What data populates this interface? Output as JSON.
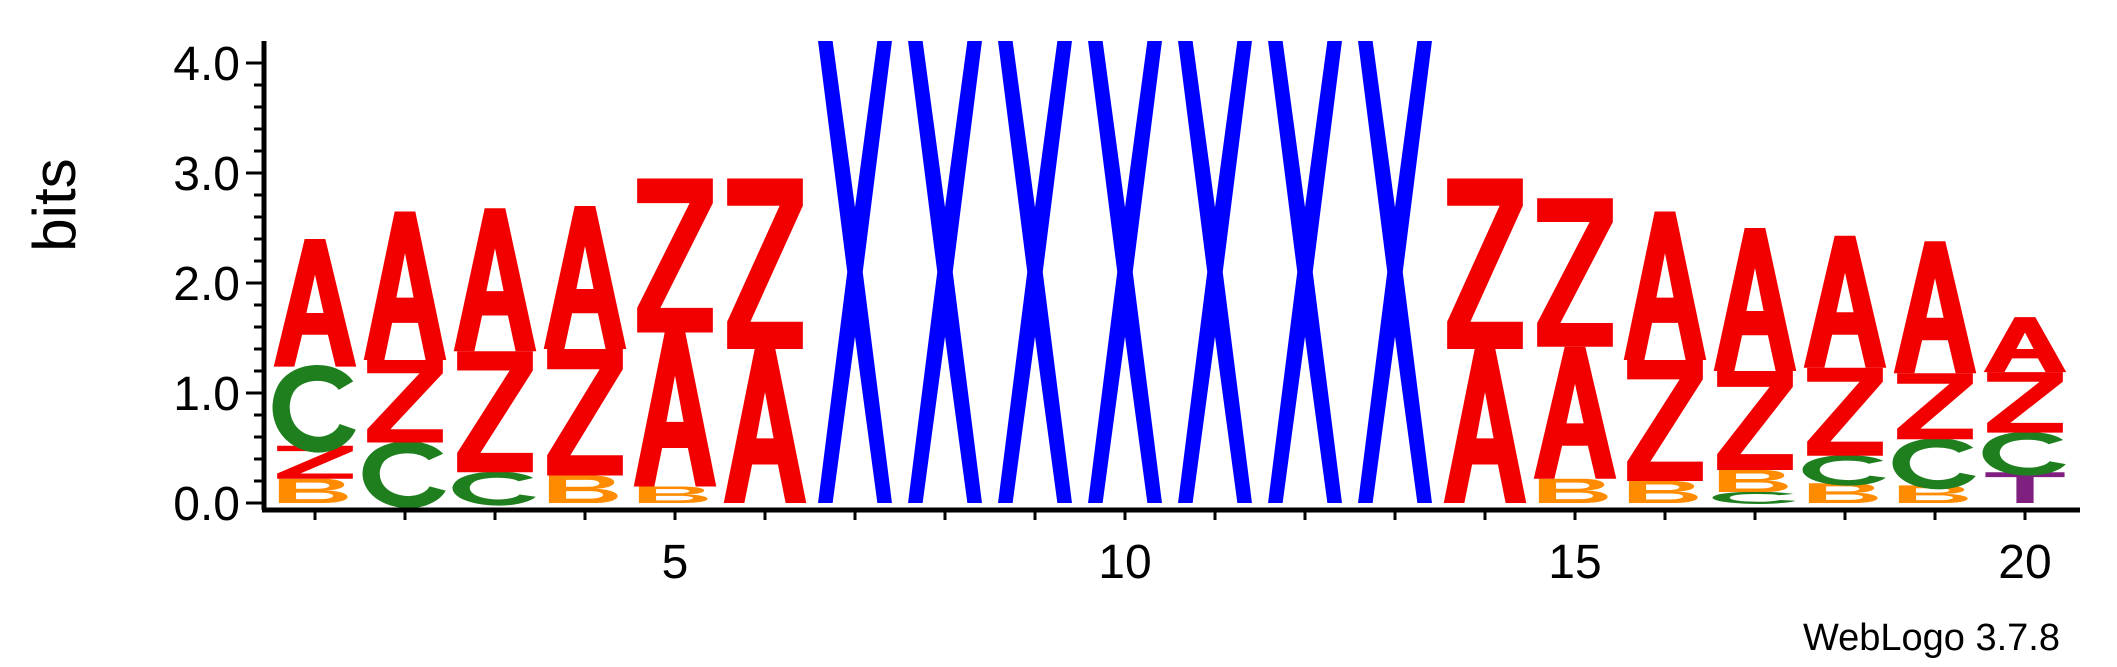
{
  "chart_data": {
    "type": "sequence-logo",
    "ylabel": "bits",
    "ylim": [
      0,
      4.2
    ],
    "yticks": [
      "0.0",
      "1.0",
      "2.0",
      "3.0",
      "4.0"
    ],
    "xticks": [
      {
        "position": 5,
        "label": "5"
      },
      {
        "position": 10,
        "label": "10"
      },
      {
        "position": 15,
        "label": "15"
      },
      {
        "position": 20,
        "label": "20"
      }
    ],
    "footer": "WebLogo 3.7.8",
    "colors": {
      "A": "#f20000",
      "Z": "#f20000",
      "C": "#1f7f1f",
      "B": "#ff8c00",
      "X": "#0000ff",
      "T": "#7f1f7f"
    },
    "positions": [
      {
        "pos": 1,
        "stack": [
          {
            "letter": "B",
            "height": 0.22
          },
          {
            "letter": "Z",
            "height": 0.3
          },
          {
            "letter": "C",
            "height": 0.72
          },
          {
            "letter": "A",
            "height": 1.16
          }
        ]
      },
      {
        "pos": 2,
        "stack": [
          {
            "letter": "C",
            "height": 0.55
          },
          {
            "letter": "Z",
            "height": 0.75
          },
          {
            "letter": "A",
            "height": 1.35
          }
        ]
      },
      {
        "pos": 3,
        "stack": [
          {
            "letter": "C",
            "height": 0.28
          },
          {
            "letter": "Z",
            "height": 1.1
          },
          {
            "letter": "A",
            "height": 1.3
          }
        ]
      },
      {
        "pos": 4,
        "stack": [
          {
            "letter": "B",
            "height": 0.25
          },
          {
            "letter": "Z",
            "height": 1.15
          },
          {
            "letter": "A",
            "height": 1.3
          }
        ]
      },
      {
        "pos": 5,
        "stack": [
          {
            "letter": "B",
            "height": 0.15
          },
          {
            "letter": "A",
            "height": 1.4
          },
          {
            "letter": "Z",
            "height": 1.4
          }
        ]
      },
      {
        "pos": 6,
        "stack": [
          {
            "letter": "A",
            "height": 1.4
          },
          {
            "letter": "Z",
            "height": 1.55
          }
        ]
      },
      {
        "pos": 7,
        "stack": [
          {
            "letter": "X",
            "height": 4.2
          }
        ]
      },
      {
        "pos": 8,
        "stack": [
          {
            "letter": "X",
            "height": 4.2
          }
        ]
      },
      {
        "pos": 9,
        "stack": [
          {
            "letter": "X",
            "height": 4.2
          }
        ]
      },
      {
        "pos": 10,
        "stack": [
          {
            "letter": "X",
            "height": 4.2
          }
        ]
      },
      {
        "pos": 11,
        "stack": [
          {
            "letter": "X",
            "height": 4.2
          }
        ]
      },
      {
        "pos": 12,
        "stack": [
          {
            "letter": "X",
            "height": 4.2
          }
        ]
      },
      {
        "pos": 13,
        "stack": [
          {
            "letter": "X",
            "height": 4.2
          }
        ]
      },
      {
        "pos": 14,
        "stack": [
          {
            "letter": "A",
            "height": 1.4
          },
          {
            "letter": "Z",
            "height": 1.55
          }
        ]
      },
      {
        "pos": 15,
        "stack": [
          {
            "letter": "B",
            "height": 0.22
          },
          {
            "letter": "A",
            "height": 1.2
          },
          {
            "letter": "Z",
            "height": 1.35
          }
        ]
      },
      {
        "pos": 16,
        "stack": [
          {
            "letter": "B",
            "height": 0.2
          },
          {
            "letter": "Z",
            "height": 1.1
          },
          {
            "letter": "A",
            "height": 1.35
          }
        ]
      },
      {
        "pos": 17,
        "stack": [
          {
            "letter": "C",
            "height": 0.1
          },
          {
            "letter": "B",
            "height": 0.2
          },
          {
            "letter": "Z",
            "height": 0.9
          },
          {
            "letter": "A",
            "height": 1.3
          }
        ]
      },
      {
        "pos": 18,
        "stack": [
          {
            "letter": "B",
            "height": 0.18
          },
          {
            "letter": "C",
            "height": 0.25
          },
          {
            "letter": "Z",
            "height": 0.8
          },
          {
            "letter": "A",
            "height": 1.2
          }
        ]
      },
      {
        "pos": 19,
        "stack": [
          {
            "letter": "B",
            "height": 0.16
          },
          {
            "letter": "C",
            "height": 0.42
          },
          {
            "letter": "Z",
            "height": 0.6
          },
          {
            "letter": "A",
            "height": 1.2
          }
        ]
      },
      {
        "pos": 20,
        "stack": [
          {
            "letter": "T",
            "height": 0.28
          },
          {
            "letter": "C",
            "height": 0.36
          },
          {
            "letter": "Z",
            "height": 0.55
          },
          {
            "letter": "A",
            "height": 0.5
          }
        ]
      }
    ]
  }
}
